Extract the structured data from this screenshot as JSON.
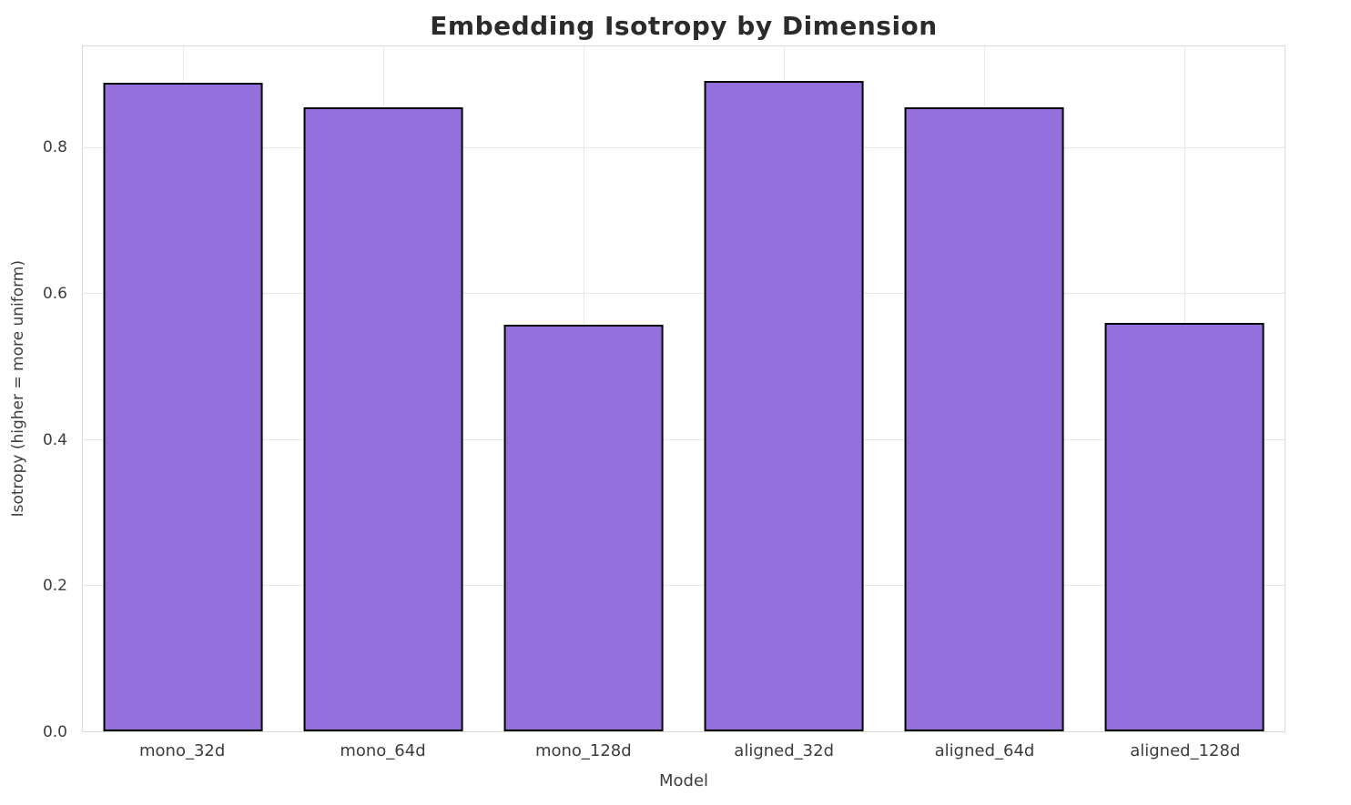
{
  "title": "Embedding Isotropy by Dimension",
  "chart_data": {
    "type": "bar",
    "categories": [
      "mono_32d",
      "mono_64d",
      "mono_128d",
      "aligned_32d",
      "aligned_64d",
      "aligned_128d"
    ],
    "values": [
      0.89,
      0.856,
      0.558,
      0.893,
      0.857,
      0.56
    ],
    "title": "Embedding Isotropy by Dimension",
    "xlabel": "Model",
    "ylabel": "Isotropy (higher = more uniform)",
    "ylim": [
      0,
      0.94
    ],
    "yticks": [
      0.0,
      0.2,
      0.4,
      0.6,
      0.8
    ],
    "bar_color": "#9370db",
    "bar_edge_color": "#000000",
    "grid": true,
    "legend": "none",
    "background": "#ffffff"
  }
}
